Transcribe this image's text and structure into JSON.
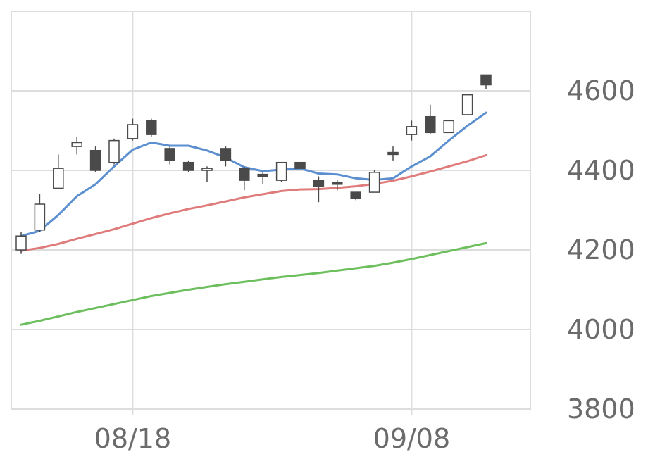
{
  "chart_data": {
    "type": "candlestick",
    "title": "",
    "xlabel": "",
    "ylabel": "",
    "ylim": [
      3800,
      4800
    ],
    "y_ticks": [
      3800,
      4000,
      4200,
      4400,
      4600
    ],
    "y_tick_labels": [
      "3800",
      "4000",
      "4200",
      "4400",
      "4600"
    ],
    "x_tick_labels": [
      {
        "label": "08/18",
        "index": 6
      },
      {
        "label": "09/08",
        "index": 21
      }
    ],
    "grid": true,
    "colors": {
      "up_fill": "#ffffff",
      "down_fill": "#4a4a4a",
      "candle_stroke": "#4a4a4a",
      "grid": "#dddddd",
      "frame": "#dddddd",
      "ma_short": "#5b8fd0",
      "ma_medium": "#e07b7b",
      "ma_long": "#6cbf5c"
    },
    "candles": [
      {
        "o": 4200,
        "h": 4245,
        "l": 4190,
        "c": 4235
      },
      {
        "o": 4250,
        "h": 4340,
        "l": 4245,
        "c": 4315
      },
      {
        "o": 4355,
        "h": 4440,
        "l": 4355,
        "c": 4405
      },
      {
        "o": 4460,
        "h": 4485,
        "l": 4440,
        "c": 4470
      },
      {
        "o": 4450,
        "h": 4460,
        "l": 4395,
        "c": 4400
      },
      {
        "o": 4420,
        "h": 4480,
        "l": 4415,
        "c": 4475
      },
      {
        "o": 4480,
        "h": 4530,
        "l": 4475,
        "c": 4515
      },
      {
        "o": 4525,
        "h": 4530,
        "l": 4485,
        "c": 4490
      },
      {
        "o": 4455,
        "h": 4460,
        "l": 4415,
        "c": 4425
      },
      {
        "o": 4420,
        "h": 4425,
        "l": 4395,
        "c": 4400
      },
      {
        "o": 4400,
        "h": 4410,
        "l": 4370,
        "c": 4405
      },
      {
        "o": 4455,
        "h": 4460,
        "l": 4410,
        "c": 4425
      },
      {
        "o": 4405,
        "h": 4410,
        "l": 4350,
        "c": 4375
      },
      {
        "o": 4390,
        "h": 4395,
        "l": 4365,
        "c": 4385
      },
      {
        "o": 4375,
        "h": 4420,
        "l": 4370,
        "c": 4420
      },
      {
        "o": 4420,
        "h": 4420,
        "l": 4405,
        "c": 4405
      },
      {
        "o": 4375,
        "h": 4385,
        "l": 4320,
        "c": 4360
      },
      {
        "o": 4370,
        "h": 4375,
        "l": 4350,
        "c": 4365
      },
      {
        "o": 4345,
        "h": 4345,
        "l": 4325,
        "c": 4330
      },
      {
        "o": 4345,
        "h": 4400,
        "l": 4345,
        "c": 4395
      },
      {
        "o": 4445,
        "h": 4460,
        "l": 4425,
        "c": 4440
      },
      {
        "o": 4490,
        "h": 4525,
        "l": 4475,
        "c": 4510
      },
      {
        "o": 4535,
        "h": 4565,
        "l": 4490,
        "c": 4495
      },
      {
        "o": 4495,
        "h": 4525,
        "l": 4495,
        "c": 4525
      },
      {
        "o": 4540,
        "h": 4590,
        "l": 4540,
        "c": 4590
      },
      {
        "o": 4640,
        "h": 4640,
        "l": 4605,
        "c": 4615
      }
    ],
    "series": [
      {
        "key": "ma_short",
        "values": [
          4235,
          4248,
          4288,
          4335,
          4365,
          4410,
          4452,
          4470,
          4462,
          4462,
          4450,
          4432,
          4408,
          4398,
          4402,
          4405,
          4392,
          4390,
          4380,
          4376,
          4380,
          4410,
          4435,
          4475,
          4512,
          4545
        ]
      },
      {
        "key": "ma_medium",
        "values": [
          4198,
          4205,
          4215,
          4228,
          4240,
          4252,
          4266,
          4280,
          4292,
          4303,
          4312,
          4322,
          4332,
          4340,
          4348,
          4352,
          4353,
          4356,
          4360,
          4366,
          4374,
          4385,
          4397,
          4410,
          4423,
          4438
        ]
      },
      {
        "key": "ma_long",
        "values": [
          4012,
          4022,
          4033,
          4044,
          4054,
          4064,
          4074,
          4084,
          4092,
          4100,
          4107,
          4114,
          4120,
          4126,
          4132,
          4137,
          4142,
          4148,
          4154,
          4160,
          4168,
          4177,
          4187,
          4197,
          4207,
          4217
        ]
      }
    ]
  }
}
